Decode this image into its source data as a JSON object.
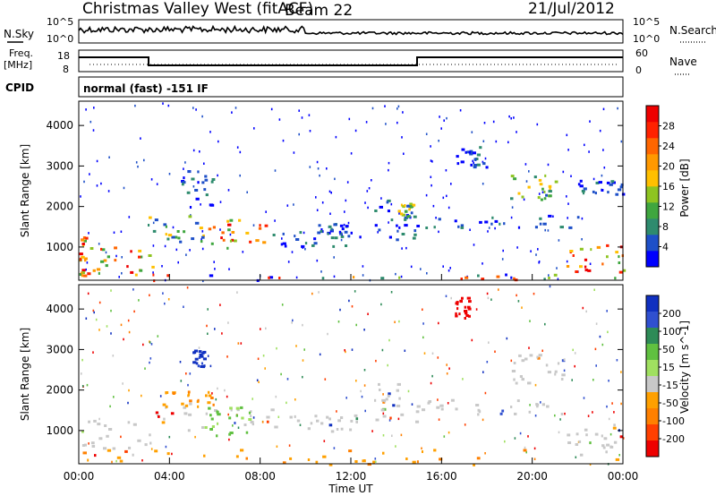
{
  "header": {
    "station": "Christmas Valley West (fitACF)",
    "beam": "Beam 22",
    "date": "21/Jul/2012"
  },
  "top_panels": {
    "nsky_label": "N.Sky",
    "nsky_ticks": [
      "10^5",
      "10^0"
    ],
    "nsearch_label": "N.Search",
    "nsearch_ticks": [
      "10^5",
      "10^0"
    ],
    "freq_label_1": "Freq.",
    "freq_label_2": "[MHz]",
    "freq_ticks": [
      "18",
      "8"
    ],
    "nave_label": "Nave",
    "nave_ticks": [
      "60",
      "0"
    ],
    "cpid_label": "CPID",
    "cpid_text": "normal (fast) -151 IF"
  },
  "chart_data": [
    {
      "type": "heatmap",
      "name": "power",
      "ylabel": "Slant Range [km]",
      "ylim": [
        180,
        4600
      ],
      "y_ticks": [
        1000,
        2000,
        3000,
        4000
      ],
      "colorbar_label": "Power [dB]",
      "colorbar_ticks": [
        "4",
        "8",
        "12",
        "16",
        "20",
        "24",
        "28"
      ],
      "colorbar_colors": [
        "#0000ff",
        "#1e50c8",
        "#2e8b6e",
        "#3fa63f",
        "#8ec421",
        "#ffc000",
        "#ff9900",
        "#ff6600",
        "#ff2200",
        "#ee0000"
      ],
      "blobs": [
        {
          "t0": 0.0,
          "t1": 0.3,
          "r0": 300,
          "r1": 1300,
          "level": "strong"
        },
        {
          "t0": 0.3,
          "t1": 3.3,
          "r0": 350,
          "r1": 1050,
          "level": "strong"
        },
        {
          "t0": 3.0,
          "t1": 5.5,
          "r0": 1150,
          "r1": 1800,
          "level": "medium"
        },
        {
          "t0": 4.5,
          "t1": 6.0,
          "r0": 2000,
          "r1": 2900,
          "level": "weak"
        },
        {
          "t0": 5.5,
          "t1": 8.5,
          "r0": 1000,
          "r1": 1700,
          "level": "strong"
        },
        {
          "t0": 8.5,
          "t1": 12.5,
          "r0": 1000,
          "r1": 1400,
          "level": "weak"
        },
        {
          "t0": 10.5,
          "t1": 11.8,
          "r0": 1350,
          "r1": 1600,
          "level": "weak"
        },
        {
          "t0": 13.0,
          "t1": 15.0,
          "r0": 1200,
          "r1": 2200,
          "level": "weak"
        },
        {
          "t0": 14.0,
          "t1": 14.8,
          "r0": 1700,
          "r1": 2100,
          "level": "medium"
        },
        {
          "t0": 15.0,
          "t1": 22.0,
          "r0": 1500,
          "r1": 1800,
          "level": "weak"
        },
        {
          "t0": 16.5,
          "t1": 18.0,
          "r0": 3000,
          "r1": 3500,
          "level": "weak"
        },
        {
          "t0": 19.0,
          "t1": 21.0,
          "r0": 2200,
          "r1": 2800,
          "level": "medium"
        },
        {
          "t0": 21.5,
          "t1": 24.0,
          "r0": 400,
          "r1": 1100,
          "level": "strong"
        },
        {
          "t0": 22.0,
          "t1": 24.0,
          "r0": 2300,
          "r1": 2700,
          "level": "weak"
        },
        {
          "t0": 0.0,
          "t1": 24.0,
          "r0": 180,
          "r1": 350,
          "level": "ground"
        }
      ]
    },
    {
      "type": "heatmap",
      "name": "velocity",
      "ylabel": "Slant Range [km]",
      "ylim": [
        180,
        4600
      ],
      "y_ticks": [
        1000,
        2000,
        3000,
        4000
      ],
      "colorbar_label": "Velocity [m s^-1]",
      "colorbar_ticks": [
        "200",
        "100",
        "50",
        "15",
        "-15",
        "-50",
        "-100",
        "-200"
      ],
      "colorbar_colors": [
        "#1030c0",
        "#3050d0",
        "#2e8b57",
        "#60c040",
        "#a0e060",
        "#c8c8c8",
        "#ffa000",
        "#ff8000",
        "#ff4000",
        "#ee0000"
      ],
      "blobs": [
        {
          "t0": 0.0,
          "t1": 3.3,
          "r0": 350,
          "r1": 1300,
          "vel": "ground"
        },
        {
          "t0": 3.0,
          "t1": 8.5,
          "r0": 1000,
          "r1": 1800,
          "vel": "ground"
        },
        {
          "t0": 5.5,
          "t1": 7.5,
          "r0": 900,
          "r1": 1600,
          "vel": "green"
        },
        {
          "t0": 3.5,
          "t1": 6.0,
          "r0": 1600,
          "r1": 2000,
          "vel": "orange"
        },
        {
          "t0": 8.5,
          "t1": 12.5,
          "r0": 1000,
          "r1": 1400,
          "vel": "ground"
        },
        {
          "t0": 13.0,
          "t1": 15.0,
          "r0": 1200,
          "r1": 2200,
          "vel": "ground"
        },
        {
          "t0": 15.0,
          "t1": 22.0,
          "r0": 1400,
          "r1": 1800,
          "vel": "ground"
        },
        {
          "t0": 19.0,
          "t1": 21.5,
          "r0": 2200,
          "r1": 2900,
          "vel": "ground"
        },
        {
          "t0": 21.5,
          "t1": 24.0,
          "r0": 400,
          "r1": 1200,
          "vel": "ground"
        },
        {
          "t0": 5.0,
          "t1": 5.5,
          "r0": 2600,
          "r1": 3000,
          "vel": "blue"
        },
        {
          "t0": 16.5,
          "t1": 17.2,
          "r0": 3800,
          "r1": 4300,
          "vel": "red"
        },
        {
          "t0": 0.0,
          "t1": 24.0,
          "r0": 180,
          "r1": 600,
          "vel": "orange"
        }
      ]
    }
  ],
  "time_axis": {
    "label": "Time UT",
    "ticks": [
      "00:00",
      "04:00",
      "08:00",
      "12:00",
      "16:00",
      "20:00",
      "00:00"
    ],
    "hours": [
      0,
      4,
      8,
      12,
      16,
      20,
      24
    ]
  }
}
